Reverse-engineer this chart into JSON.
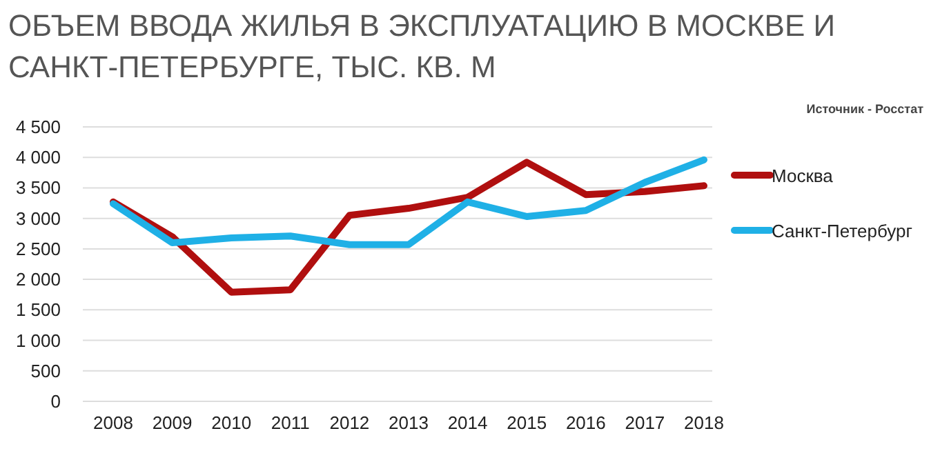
{
  "chart_data": {
    "type": "line",
    "title": "ОБЪЕМ ВВОДА ЖИЛЬЯ В ЭКСПЛУАТАЦИЮ В МОСКВЕ И САНКТ-ПЕТЕРБУРГЕ, ТЫС. КВ. М",
    "annotations": [
      "Источник - Росстат"
    ],
    "categories": [
      "2008",
      "2009",
      "2010",
      "2011",
      "2012",
      "2013",
      "2014",
      "2015",
      "2016",
      "2017",
      "2018"
    ],
    "series": [
      {
        "name": "Москва",
        "color": "#b00f0f",
        "values": [
          3270,
          2700,
          1790,
          1830,
          3050,
          3165,
          3345,
          3920,
          3390,
          3440,
          3535
        ]
      },
      {
        "name": "Санкт-Петербург",
        "color": "#1fb0e6",
        "values": [
          3240,
          2600,
          2680,
          2710,
          2570,
          2570,
          3270,
          3030,
          3130,
          3590,
          3960
        ]
      }
    ],
    "ylim": [
      0,
      4500
    ],
    "yticks": [
      {
        "value": 0,
        "label": "0"
      },
      {
        "value": 500,
        "label": "500"
      },
      {
        "value": 1000,
        "label": "1 000"
      },
      {
        "value": 1500,
        "label": "1 500"
      },
      {
        "value": 2000,
        "label": "2 000"
      },
      {
        "value": 2500,
        "label": "2 500"
      },
      {
        "value": 3000,
        "label": "3 000"
      },
      {
        "value": 3500,
        "label": "3 500"
      },
      {
        "value": 4000,
        "label": "4 000"
      },
      {
        "value": 4500,
        "label": "4 500"
      }
    ],
    "grid": "y",
    "legend": "right",
    "marker": "none",
    "line_style": "solid"
  }
}
